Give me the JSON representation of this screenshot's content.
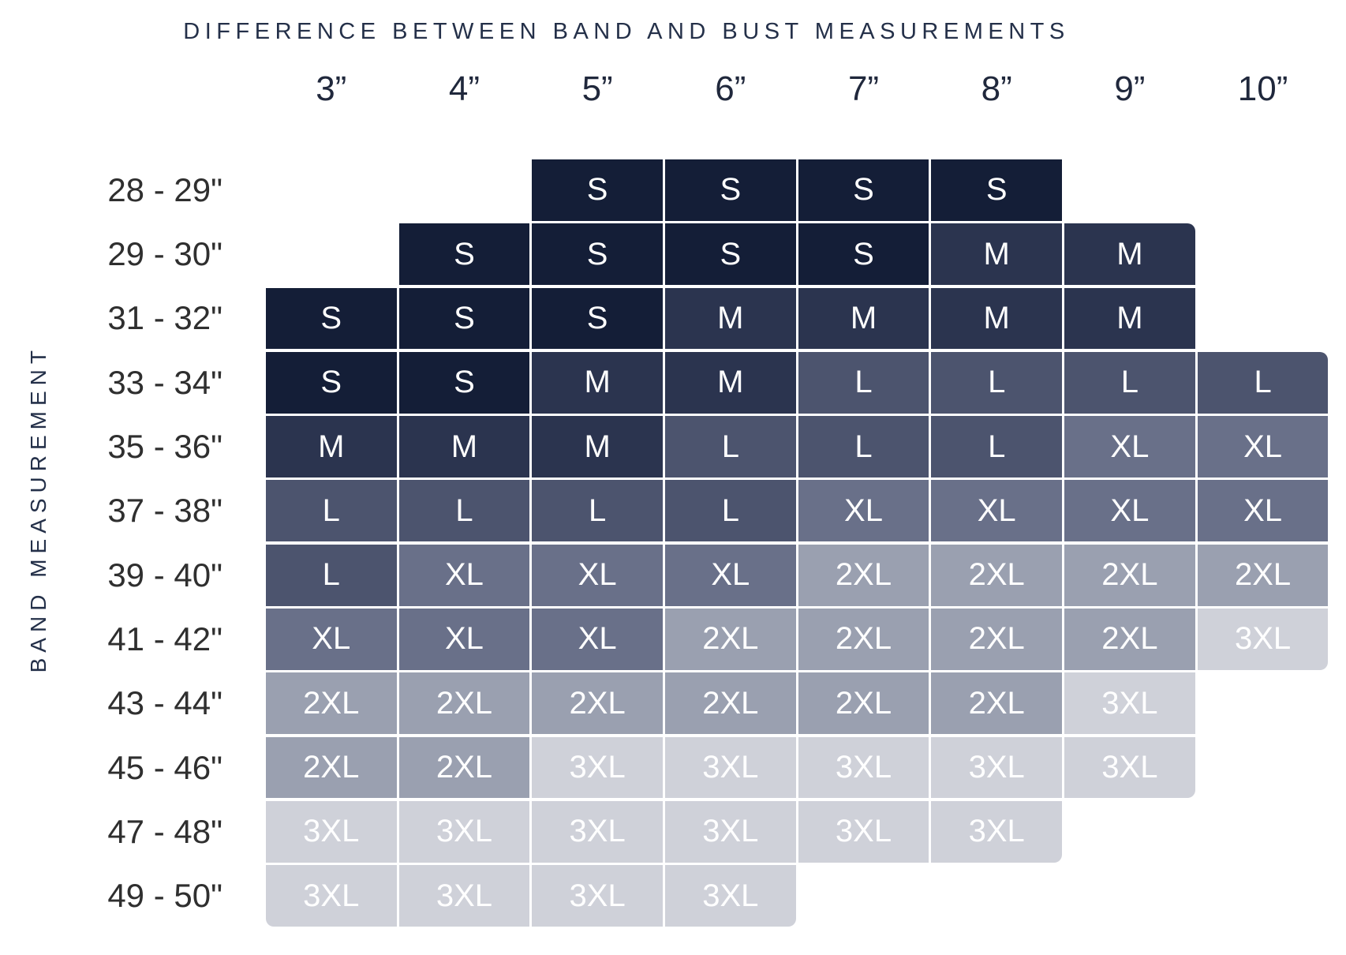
{
  "chart_data": {
    "type": "heatmap",
    "title": "DIFFERENCE BETWEEN BAND AND BUST MEASUREMENTS",
    "xlabel": "DIFFERENCE BETWEEN BAND AND BUST MEASUREMENTS",
    "ylabel": "BAND MEASUREMENT",
    "x_categories": [
      "3”",
      "4”",
      "5”",
      "6”",
      "7”",
      "8”",
      "9”",
      "10”"
    ],
    "y_categories": [
      "28 - 29\"",
      "29 - 30\"",
      "31 - 32\"",
      "33 - 34\"",
      "35 - 36\"",
      "37 - 38\"",
      "39 - 40\"",
      "41 - 42\"",
      "43 - 44\"",
      "45 - 46\"",
      "47 - 48\"",
      "49 - 50\""
    ],
    "matrix": [
      [
        null,
        null,
        "S",
        "S",
        "S",
        "S",
        null,
        null
      ],
      [
        null,
        "S",
        "S",
        "S",
        "S",
        "M",
        "M",
        null
      ],
      [
        "S",
        "S",
        "S",
        "M",
        "M",
        "M",
        "M",
        null
      ],
      [
        "S",
        "S",
        "M",
        "M",
        "L",
        "L",
        "L",
        "L"
      ],
      [
        "M",
        "M",
        "M",
        "L",
        "L",
        "L",
        "XL",
        "XL"
      ],
      [
        "L",
        "L",
        "L",
        "L",
        "XL",
        "XL",
        "XL",
        "XL"
      ],
      [
        "L",
        "XL",
        "XL",
        "XL",
        "2XL",
        "2XL",
        "2XL",
        "2XL"
      ],
      [
        "XL",
        "XL",
        "XL",
        "2XL",
        "2XL",
        "2XL",
        "2XL",
        "3XL"
      ],
      [
        "2XL",
        "2XL",
        "2XL",
        "2XL",
        "2XL",
        "2XL",
        "3XL",
        null
      ],
      [
        "2XL",
        "2XL",
        "3XL",
        "3XL",
        "3XL",
        "3XL",
        "3XL",
        null
      ],
      [
        "3XL",
        "3XL",
        "3XL",
        "3XL",
        "3XL",
        "3XL",
        null,
        null
      ],
      [
        "3XL",
        "3XL",
        "3XL",
        "3XL",
        null,
        null,
        null,
        null
      ]
    ],
    "palette": {
      "S": "#141e37",
      "M": "#2b344f",
      "L": "#4c546e",
      "XL": "#697089",
      "2XL": "#9aa0b0",
      "3XL": "#cfd1d9"
    },
    "cell_text_color": "#ffffff",
    "grid": "white-gaps-between-cells",
    "legend_position": "none"
  }
}
